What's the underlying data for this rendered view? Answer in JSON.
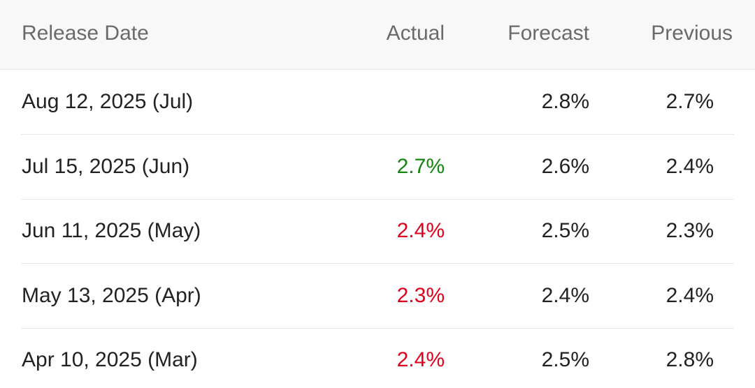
{
  "table": {
    "header": [
      "Release Date",
      "Actual",
      "Forecast",
      "Previous"
    ],
    "rows": [
      [
        "Aug 12, 2025 (Jul)",
        null,
        "2.8%",
        "2.7%"
      ],
      [
        "Jul 15, 2025 (Jun)",
        "2.7%",
        "2.6%",
        "2.4%"
      ],
      [
        "Jun 11, 2025 (May)",
        "2.4%",
        "2.5%",
        "2.3%"
      ],
      [
        "May 13, 2025 (Apr)",
        "2.3%",
        "2.4%",
        "2.4%"
      ],
      [
        "Apr 10, 2025 (Mar)",
        "2.4%",
        "2.5%",
        "2.8%"
      ]
    ],
    "actual_colors": [
      null,
      "#13860f",
      "#e0001b",
      "#e0001b",
      "#e0001b"
    ]
  }
}
